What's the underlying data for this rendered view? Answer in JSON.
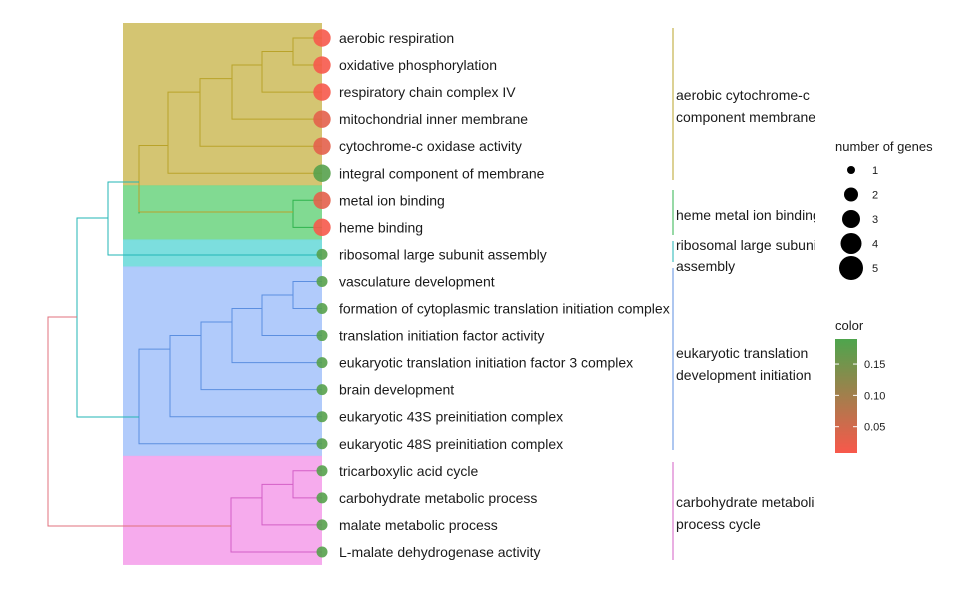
{
  "chart_data": {
    "type": "tree",
    "terms": [
      {
        "label": "aerobic respiration",
        "genes": 3,
        "color_value": 0.01
      },
      {
        "label": "oxidative phosphorylation",
        "genes": 3,
        "color_value": 0.01
      },
      {
        "label": "respiratory chain complex IV",
        "genes": 3,
        "color_value": 0.01
      },
      {
        "label": "mitochondrial inner membrane",
        "genes": 3,
        "color_value": 0.03
      },
      {
        "label": "cytochrome-c oxidase activity",
        "genes": 3,
        "color_value": 0.03
      },
      {
        "label": "integral component of membrane",
        "genes": 3,
        "color_value": 0.18
      },
      {
        "label": "metal ion binding",
        "genes": 3,
        "color_value": 0.03
      },
      {
        "label": "heme binding",
        "genes": 3,
        "color_value": 0.01
      },
      {
        "label": "ribosomal large subunit assembly",
        "genes": 1,
        "color_value": 0.18
      },
      {
        "label": "vasculature development",
        "genes": 1,
        "color_value": 0.18
      },
      {
        "label": "formation of cytoplasmic translation initiation complex",
        "genes": 1,
        "color_value": 0.18
      },
      {
        "label": "translation initiation factor activity",
        "genes": 1,
        "color_value": 0.18
      },
      {
        "label": "eukaryotic translation initiation factor 3 complex",
        "genes": 1,
        "color_value": 0.18
      },
      {
        "label": "brain development",
        "genes": 1,
        "color_value": 0.18
      },
      {
        "label": "eukaryotic 43S preinitiation complex",
        "genes": 1,
        "color_value": 0.18
      },
      {
        "label": "eukaryotic 48S preinitiation complex",
        "genes": 1,
        "color_value": 0.18
      },
      {
        "label": "tricarboxylic acid cycle",
        "genes": 1,
        "color_value": 0.18
      },
      {
        "label": "carbohydrate metabolic process",
        "genes": 1,
        "color_value": 0.18
      },
      {
        "label": "malate metabolic process",
        "genes": 1,
        "color_value": 0.18
      },
      {
        "label": "L-malate dehydrogenase activity",
        "genes": 1,
        "color_value": 0.18
      }
    ],
    "clusters": [
      {
        "label_lines": [
          "aerobic cytochrome-c",
          "component membrane"
        ],
        "start": 0,
        "end": 5,
        "fill": "#d2c26a",
        "line": "#b9a32a"
      },
      {
        "label_lines": [
          "heme metal ion binding"
        ],
        "start": 6,
        "end": 7,
        "fill": "#7ad88c",
        "line": "#2fb34d"
      },
      {
        "label_lines": [
          "ribosomal large subunit",
          "assembly"
        ],
        "start": 8,
        "end": 8,
        "fill": "#75dcdc",
        "line": "#22b6b6"
      },
      {
        "label_lines": [
          "eukaryotic translation",
          "development initiation"
        ],
        "start": 9,
        "end": 15,
        "fill": "#adc8fb",
        "line": "#5c8fe0"
      },
      {
        "label_lines": [
          "carbohydrate metabolic",
          "process cycle"
        ],
        "start": 16,
        "end": 19,
        "fill": "#f6a7ec",
        "line": "#d35fc6"
      }
    ],
    "size_legend": {
      "title": "number of genes",
      "values": [
        1,
        2,
        3,
        4,
        5
      ]
    },
    "color_legend": {
      "title": "color",
      "ticks": [
        0.15,
        0.1,
        0.05
      ],
      "min": 0.008,
      "max": 0.19,
      "low_color": "#f8584b",
      "high_color": "#4ea54d"
    }
  }
}
